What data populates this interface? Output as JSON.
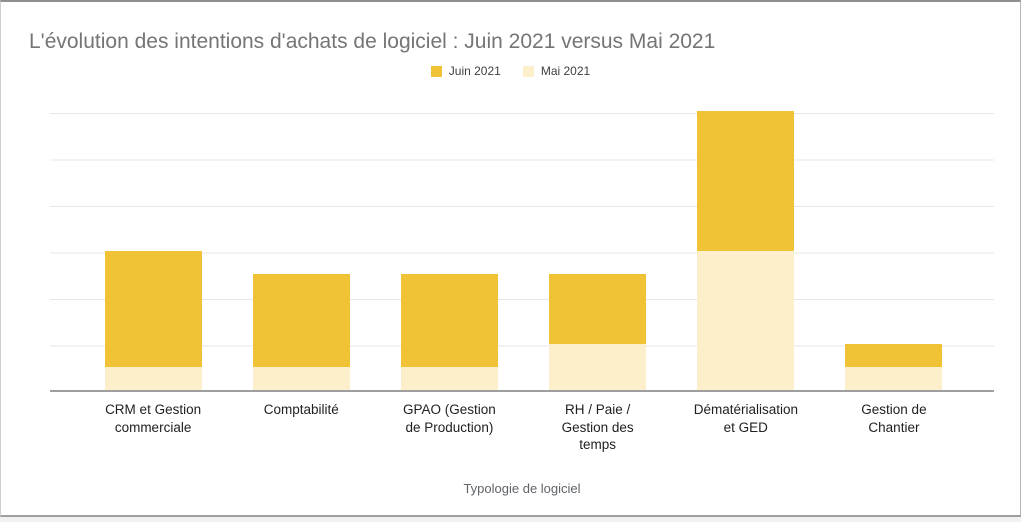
{
  "title": "L'évolution des intentions d'achats de logiciel : Juin 2021 versus Mai 2021",
  "legend": {
    "items": [
      {
        "label": "Juin 2021",
        "color": "#F0C236"
      },
      {
        "label": "Mai 2021",
        "color": "#FDEFCC"
      }
    ]
  },
  "xaxis": {
    "title": "Typologie de logiciel"
  },
  "colors": {
    "juin_2021": "#F0C236",
    "mai_2021": "#FDEFCC",
    "title_text": "#757575",
    "gridline": "#e7e7e7",
    "baseline": "#9e9e9e",
    "category_label": "#212121",
    "axis_title_text": "#5f6368"
  },
  "chart_data": {
    "type": "bar",
    "subtype": "stacked-vertical-column",
    "title": "L'évolution des intentions d'achats de logiciel : Juin 2021 versus Mai 2021",
    "xlabel": "Typologie de logiciel",
    "ylabel": "",
    "categories": [
      "CRM et Gestion commerciale",
      "Comptabilité",
      "GPAO (Gestion de Production)",
      "RH / Paie / Gestion des temps",
      "Dématérialisation et GED",
      "Gestion de Chantier"
    ],
    "series": [
      {
        "name": "Juin 2021",
        "color": "#F0C236",
        "values": [
          2.5,
          2.0,
          2.0,
          1.5,
          3.0,
          0.5
        ]
      },
      {
        "name": "Mai 2021",
        "color": "#FDEFCC",
        "values": [
          0.5,
          0.5,
          0.5,
          1.0,
          3.0,
          0.5
        ]
      }
    ],
    "stack_order_bottom_to_top": [
      "Mai 2021",
      "Juin 2021"
    ],
    "stacked_totals": [
      3.0,
      2.5,
      2.5,
      2.5,
      6.0,
      1.0
    ],
    "ylim": [
      0,
      6
    ],
    "gridline_step": 1,
    "y_tick_labels_visible": false,
    "grid": true,
    "legend_position": "top-center"
  }
}
